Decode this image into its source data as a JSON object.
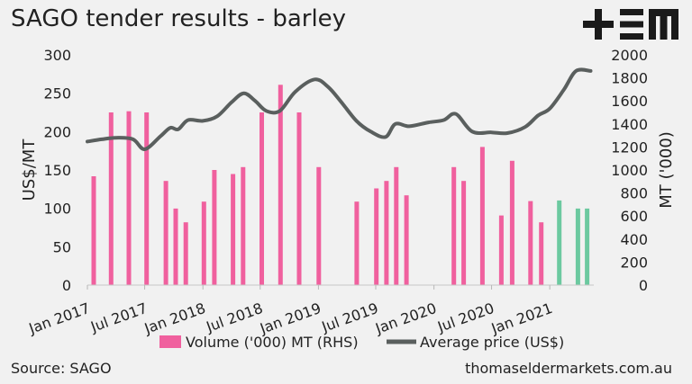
{
  "title": "SAGO tender results - barley",
  "source": "Source: SAGO",
  "website": "thomaseldermarkets.com.au",
  "logo": {
    "text": "+EM",
    "icon": "tem-logo"
  },
  "colors": {
    "volume": "#f0609e",
    "volume_highlight": "#6cc9a0",
    "price": "#5a5f5e",
    "background": "#f1f1f1"
  },
  "chart_data": {
    "type": "bar",
    "title": "SAGO tender results - barley",
    "ylabel": "US$/MT",
    "y2label": "MT ('000)",
    "ylim": [
      0,
      300
    ],
    "y2lim": [
      0,
      2000
    ],
    "yticks": [
      0,
      50,
      100,
      150,
      200,
      250,
      300
    ],
    "y2ticks": [
      0,
      200,
      400,
      600,
      800,
      1000,
      1200,
      1400,
      1600,
      1800,
      2000
    ],
    "xlim": [
      "2017-01-01",
      "2021-05-20"
    ],
    "xticks": [
      {
        "label": "Jan 2017",
        "date": "2017-01-01"
      },
      {
        "label": "Jul 2017",
        "date": "2017-07-01"
      },
      {
        "label": "Jan 2018",
        "date": "2018-01-01"
      },
      {
        "label": "Jul 2018",
        "date": "2018-07-01"
      },
      {
        "label": "Jan 2019",
        "date": "2019-01-01"
      },
      {
        "label": "Jul 2019",
        "date": "2019-07-01"
      },
      {
        "label": "Jan 2020",
        "date": "2020-01-01"
      },
      {
        "label": "Jul 2020",
        "date": "2020-07-01"
      },
      {
        "label": "Jan 2021",
        "date": "2021-01-01"
      }
    ],
    "legend": {
      "placement": "bottom"
    },
    "grid": false,
    "series": [
      {
        "name": "Volume ('000) MT (RHS)",
        "type": "bar",
        "axis": "right",
        "points": [
          {
            "date": "2017-01-21",
            "value": 945
          },
          {
            "date": "2017-03-17",
            "value": 1500
          },
          {
            "date": "2017-05-12",
            "value": 1510
          },
          {
            "date": "2017-07-07",
            "value": 1500
          },
          {
            "date": "2017-09-06",
            "value": 905
          },
          {
            "date": "2017-10-07",
            "value": 665
          },
          {
            "date": "2017-11-08",
            "value": 545
          },
          {
            "date": "2018-01-04",
            "value": 725
          },
          {
            "date": "2018-02-06",
            "value": 1000
          },
          {
            "date": "2018-04-06",
            "value": 965
          },
          {
            "date": "2018-05-08",
            "value": 1025
          },
          {
            "date": "2018-07-06",
            "value": 1500
          },
          {
            "date": "2018-09-03",
            "value": 1740
          },
          {
            "date": "2018-11-01",
            "value": 1500
          },
          {
            "date": "2019-01-02",
            "value": 1025
          },
          {
            "date": "2019-05-02",
            "value": 725
          },
          {
            "date": "2019-07-03",
            "value": 840
          },
          {
            "date": "2019-08-04",
            "value": 905
          },
          {
            "date": "2019-09-04",
            "value": 1025
          },
          {
            "date": "2019-10-06",
            "value": 780
          },
          {
            "date": "2020-03-04",
            "value": 1025
          },
          {
            "date": "2020-04-04",
            "value": 905
          },
          {
            "date": "2020-06-02",
            "value": 1200
          },
          {
            "date": "2020-08-01",
            "value": 605
          },
          {
            "date": "2020-09-04",
            "value": 1080
          },
          {
            "date": "2020-11-01",
            "value": 730
          },
          {
            "date": "2020-12-05",
            "value": 545
          },
          {
            "date": "2021-01-31",
            "value": 735,
            "highlight": true
          },
          {
            "date": "2021-03-31",
            "value": 665,
            "highlight": true
          },
          {
            "date": "2021-04-29",
            "value": 665,
            "highlight": true
          }
        ]
      },
      {
        "name": "Average price (US$)",
        "type": "line",
        "axis": "left",
        "points": [
          {
            "date": "2017-01-01",
            "value": 187
          },
          {
            "date": "2017-02-15",
            "value": 190
          },
          {
            "date": "2017-04-01",
            "value": 192
          },
          {
            "date": "2017-05-25",
            "value": 190
          },
          {
            "date": "2017-07-01",
            "value": 177
          },
          {
            "date": "2017-08-20",
            "value": 194
          },
          {
            "date": "2017-09-20",
            "value": 205
          },
          {
            "date": "2017-10-15",
            "value": 203
          },
          {
            "date": "2017-11-15",
            "value": 215
          },
          {
            "date": "2018-01-01",
            "value": 214
          },
          {
            "date": "2018-02-15",
            "value": 220
          },
          {
            "date": "2018-04-01",
            "value": 238
          },
          {
            "date": "2018-05-10",
            "value": 250
          },
          {
            "date": "2018-06-15",
            "value": 240
          },
          {
            "date": "2018-07-20",
            "value": 227
          },
          {
            "date": "2018-09-01",
            "value": 227
          },
          {
            "date": "2018-10-20",
            "value": 252
          },
          {
            "date": "2018-12-20",
            "value": 268
          },
          {
            "date": "2019-02-01",
            "value": 258
          },
          {
            "date": "2019-03-15",
            "value": 238
          },
          {
            "date": "2019-05-01",
            "value": 214
          },
          {
            "date": "2019-06-15",
            "value": 200
          },
          {
            "date": "2019-08-01",
            "value": 193
          },
          {
            "date": "2019-09-01",
            "value": 210
          },
          {
            "date": "2019-10-15",
            "value": 207
          },
          {
            "date": "2019-12-15",
            "value": 212
          },
          {
            "date": "2020-02-01",
            "value": 215
          },
          {
            "date": "2020-03-10",
            "value": 223
          },
          {
            "date": "2020-05-01",
            "value": 200
          },
          {
            "date": "2020-07-01",
            "value": 199
          },
          {
            "date": "2020-08-20",
            "value": 198
          },
          {
            "date": "2020-10-15",
            "value": 206
          },
          {
            "date": "2020-11-25",
            "value": 221
          },
          {
            "date": "2021-01-01",
            "value": 230
          },
          {
            "date": "2021-02-15",
            "value": 255
          },
          {
            "date": "2021-03-25",
            "value": 279
          },
          {
            "date": "2021-05-10",
            "value": 279
          }
        ]
      }
    ]
  }
}
